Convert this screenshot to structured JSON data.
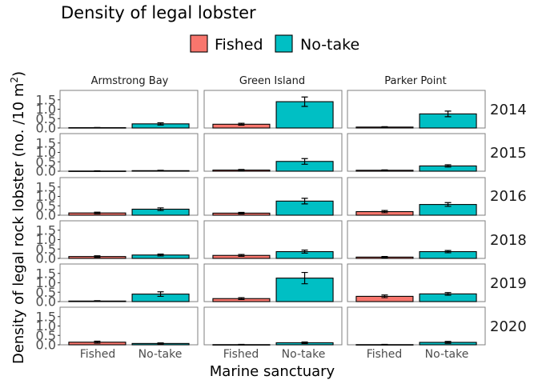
{
  "chart_data": {
    "type": "bar",
    "title": "Density of legal lobster",
    "xlabel": "Marine sanctuary",
    "ylabel": "Density of legal rock lobster (no. /10 m",
    "ylabel_superscript": "2",
    "ylabel_close": ")",
    "ylim": [
      0,
      2.0
    ],
    "yticks": [
      "0.0",
      "0.5",
      "1.0",
      "1.5"
    ],
    "ytick_values": [
      0,
      0.5,
      1.0,
      1.5
    ],
    "categories": [
      "Fished",
      "No-take"
    ],
    "legend": {
      "position": "top",
      "entries": [
        {
          "label": "Fished",
          "color": "#F8766D"
        },
        {
          "label": "No-take",
          "color": "#00BFC4"
        }
      ]
    },
    "sites": [
      "Armstrong Bay",
      "Green Island",
      "Parker Point"
    ],
    "years": [
      "2014",
      "2015",
      "2016",
      "2018",
      "2019",
      "2020"
    ],
    "panels": [
      {
        "year": "2014",
        "site": "Armstrong Bay",
        "values": [
          0.02,
          0.22
        ],
        "errors": [
          0.01,
          0.06
        ]
      },
      {
        "year": "2014",
        "site": "Green Island",
        "values": [
          0.2,
          1.4
        ],
        "errors": [
          0.05,
          0.25
        ]
      },
      {
        "year": "2014",
        "site": "Parker Point",
        "values": [
          0.05,
          0.75
        ],
        "errors": [
          0.02,
          0.15
        ]
      },
      {
        "year": "2015",
        "site": "Armstrong Bay",
        "values": [
          0.01,
          0.03
        ],
        "errors": [
          0.01,
          0.02
        ]
      },
      {
        "year": "2015",
        "site": "Green Island",
        "values": [
          0.06,
          0.52
        ],
        "errors": [
          0.03,
          0.15
        ]
      },
      {
        "year": "2015",
        "site": "Parker Point",
        "values": [
          0.05,
          0.28
        ],
        "errors": [
          0.02,
          0.06
        ]
      },
      {
        "year": "2016",
        "site": "Armstrong Bay",
        "values": [
          0.12,
          0.32
        ],
        "errors": [
          0.04,
          0.07
        ]
      },
      {
        "year": "2016",
        "site": "Green Island",
        "values": [
          0.11,
          0.75
        ],
        "errors": [
          0.04,
          0.15
        ]
      },
      {
        "year": "2016",
        "site": "Parker Point",
        "values": [
          0.19,
          0.57
        ],
        "errors": [
          0.06,
          0.1
        ]
      },
      {
        "year": "2018",
        "site": "Armstrong Bay",
        "values": [
          0.1,
          0.18
        ],
        "errors": [
          0.04,
          0.05
        ]
      },
      {
        "year": "2018",
        "site": "Green Island",
        "values": [
          0.16,
          0.36
        ],
        "errors": [
          0.05,
          0.08
        ]
      },
      {
        "year": "2018",
        "site": "Parker Point",
        "values": [
          0.07,
          0.36
        ],
        "errors": [
          0.03,
          0.06
        ]
      },
      {
        "year": "2019",
        "site": "Armstrong Bay",
        "values": [
          0.03,
          0.4
        ],
        "errors": [
          0.02,
          0.12
        ]
      },
      {
        "year": "2019",
        "site": "Green Island",
        "values": [
          0.16,
          1.25
        ],
        "errors": [
          0.05,
          0.3
        ]
      },
      {
        "year": "2019",
        "site": "Parker Point",
        "values": [
          0.28,
          0.41
        ],
        "errors": [
          0.07,
          0.07
        ]
      },
      {
        "year": "2020",
        "site": "Armstrong Bay",
        "values": [
          0.14,
          0.07
        ],
        "errors": [
          0.05,
          0.03
        ]
      },
      {
        "year": "2020",
        "site": "Green Island",
        "values": [
          0.01,
          0.11
        ],
        "errors": [
          0.01,
          0.04
        ]
      },
      {
        "year": "2020",
        "site": "Parker Point",
        "values": [
          0.01,
          0.13
        ],
        "errors": [
          0.01,
          0.05
        ]
      }
    ]
  }
}
